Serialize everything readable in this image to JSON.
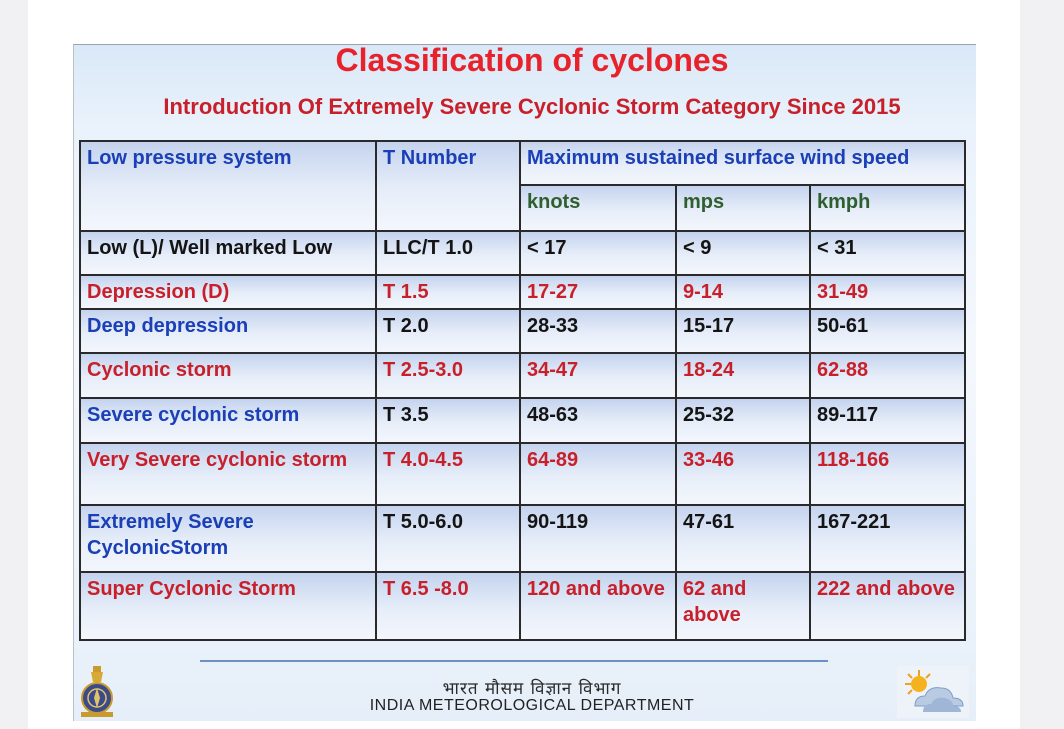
{
  "title": "Classification of cyclones",
  "subtitle": "Introduction Of Extremely Severe Cyclonic Storm Category Since 2015",
  "table": {
    "col_system": "Low pressure system",
    "col_tnumber": "T Number",
    "col_wind": "Maximum sustained surface wind speed",
    "unit_knots": "knots",
    "unit_mps": "mps",
    "unit_kmph": "kmph",
    "rows": [
      {
        "name": "Low (L)/ Well marked Low",
        "t": "LLC/T 1.0",
        "knots": "< 17",
        "mps": "< 9",
        "kmph": "< 31"
      },
      {
        "name": "Depression (D)",
        "t": "T 1.5",
        "knots": "17-27",
        "mps": "9-14",
        "kmph": "31-49"
      },
      {
        "name": "Deep depression",
        "t": "T 2.0",
        "knots": "28-33",
        "mps": "15-17",
        "kmph": "50-61"
      },
      {
        "name": "Cyclonic storm",
        "t": "T 2.5-3.0",
        "knots": "34-47",
        "mps": "18-24",
        "kmph": "62-88"
      },
      {
        "name": "Severe cyclonic storm",
        "t": "T 3.5",
        "knots": "48-63",
        "mps": "25-32",
        "kmph": "89-117"
      },
      {
        "name": "Very Severe cyclonic storm",
        "t": "T 4.0-4.5",
        "knots": "64-89",
        "mps": "33-46",
        "kmph": "118-166"
      },
      {
        "name": "Extremely Severe CyclonicStorm",
        "t": "T 5.0-6.0",
        "knots": "90-119",
        "mps": "47-61",
        "kmph": "167-221"
      },
      {
        "name": "Super Cyclonic Storm",
        "t": "T 6.5 -8.0",
        "knots": "120 and above",
        "mps": "62 and above",
        "kmph": "222 and above"
      }
    ]
  },
  "footer": {
    "hindi": "भारत मौसम विज्ञान विभाग",
    "english": "INDIA METEOROLOGICAL DEPARTMENT"
  },
  "colors": {
    "title_red": "#e8222a",
    "header_blue": "#1a3fb6",
    "unit_green": "#2f5f2f",
    "row_red": "#c8202a"
  },
  "icons": {
    "left_logo": "imd-emblem-icon",
    "right_logo": "sun-cloud-icon"
  }
}
